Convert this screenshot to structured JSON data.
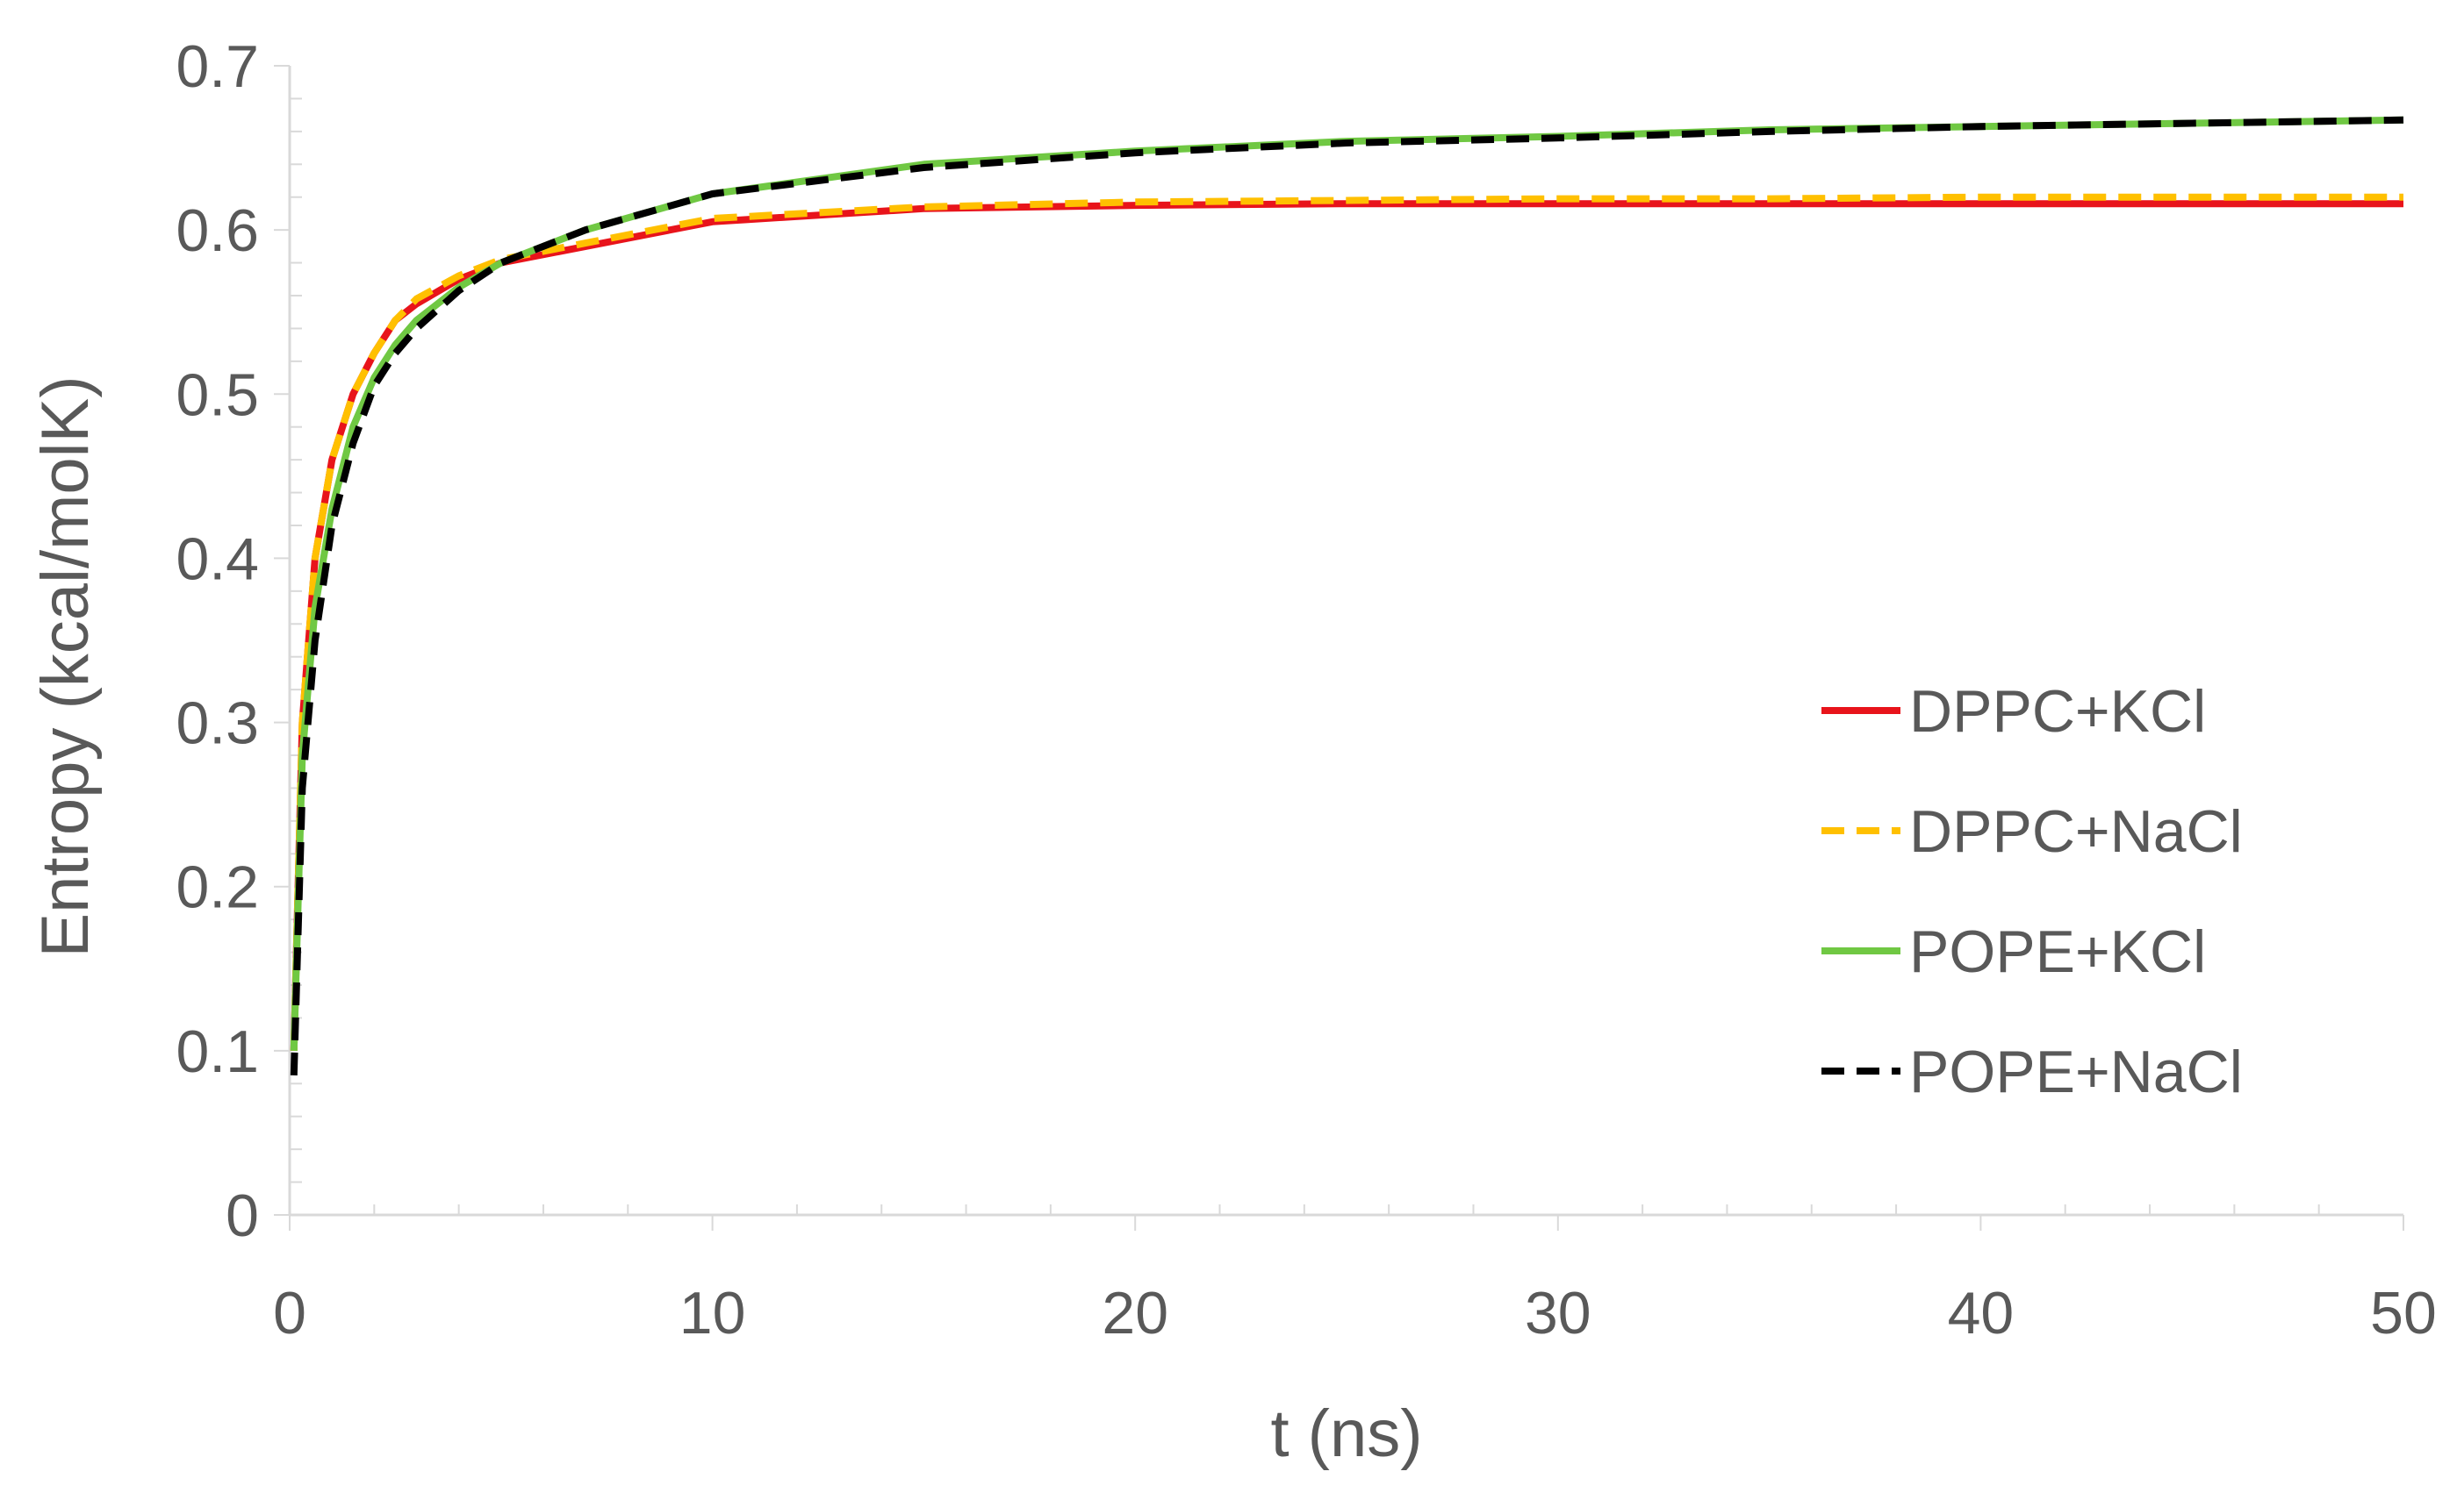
{
  "chart_data": {
    "type": "line",
    "title": "",
    "xlabel": "t (ns)",
    "ylabel": "Entropy (kcal/molK)",
    "xlim": [
      0,
      50
    ],
    "ylim": [
      0,
      0.7
    ],
    "xticks": [
      "0",
      "10",
      "20",
      "30",
      "40",
      "50"
    ],
    "yticks": [
      "0",
      "0.1",
      "0.2",
      "0.3",
      "0.4",
      "0.5",
      "0.6",
      "0.7"
    ],
    "xtick_values": [
      0,
      10,
      20,
      30,
      40,
      50
    ],
    "ytick_values": [
      0,
      0.1,
      0.2,
      0.3,
      0.4,
      0.5,
      0.6,
      0.7
    ],
    "grid": false,
    "legend_position": "right",
    "series": [
      {
        "name": "DPPC+KCl",
        "color": "#e8141b",
        "dash": "solid",
        "x": [
          0.1,
          0.3,
          0.6,
          1,
          1.5,
          2,
          2.5,
          3,
          4,
          5,
          7,
          10,
          15,
          20,
          25,
          30,
          35,
          40,
          45,
          50
        ],
        "y": [
          0.1,
          0.3,
          0.4,
          0.46,
          0.5,
          0.525,
          0.545,
          0.555,
          0.57,
          0.58,
          0.59,
          0.605,
          0.613,
          0.615,
          0.616,
          0.616,
          0.616,
          0.616,
          0.616,
          0.616
        ]
      },
      {
        "name": "DPPC+NaCl",
        "color": "#ffc000",
        "dash": "dashed",
        "x": [
          0.1,
          0.3,
          0.6,
          1,
          1.5,
          2,
          2.5,
          3,
          4,
          5,
          7,
          10,
          15,
          20,
          25,
          30,
          35,
          40,
          45,
          50
        ],
        "y": [
          0.1,
          0.3,
          0.4,
          0.46,
          0.5,
          0.525,
          0.545,
          0.558,
          0.572,
          0.582,
          0.592,
          0.607,
          0.614,
          0.617,
          0.618,
          0.619,
          0.619,
          0.62,
          0.62,
          0.62
        ]
      },
      {
        "name": "POPE+KCl",
        "color": "#70c843",
        "dash": "solid",
        "x": [
          0.1,
          0.3,
          0.6,
          1,
          1.5,
          2,
          2.5,
          3,
          4,
          5,
          7,
          10,
          15,
          20,
          25,
          30,
          35,
          40,
          45,
          50
        ],
        "y": [
          0.1,
          0.28,
          0.37,
          0.43,
          0.48,
          0.51,
          0.53,
          0.545,
          0.565,
          0.58,
          0.6,
          0.622,
          0.64,
          0.648,
          0.654,
          0.657,
          0.661,
          0.663,
          0.665,
          0.667
        ]
      },
      {
        "name": "POPE+NaCl",
        "color": "#000000",
        "dash": "dashed",
        "x": [
          0.1,
          0.3,
          0.6,
          1,
          1.5,
          2,
          2.5,
          3,
          4,
          5,
          7,
          10,
          15,
          20,
          25,
          30,
          35,
          40,
          45,
          50
        ],
        "y": [
          0.085,
          0.26,
          0.35,
          0.42,
          0.47,
          0.505,
          0.525,
          0.54,
          0.563,
          0.58,
          0.6,
          0.622,
          0.638,
          0.647,
          0.653,
          0.656,
          0.66,
          0.663,
          0.665,
          0.667
        ]
      }
    ]
  }
}
